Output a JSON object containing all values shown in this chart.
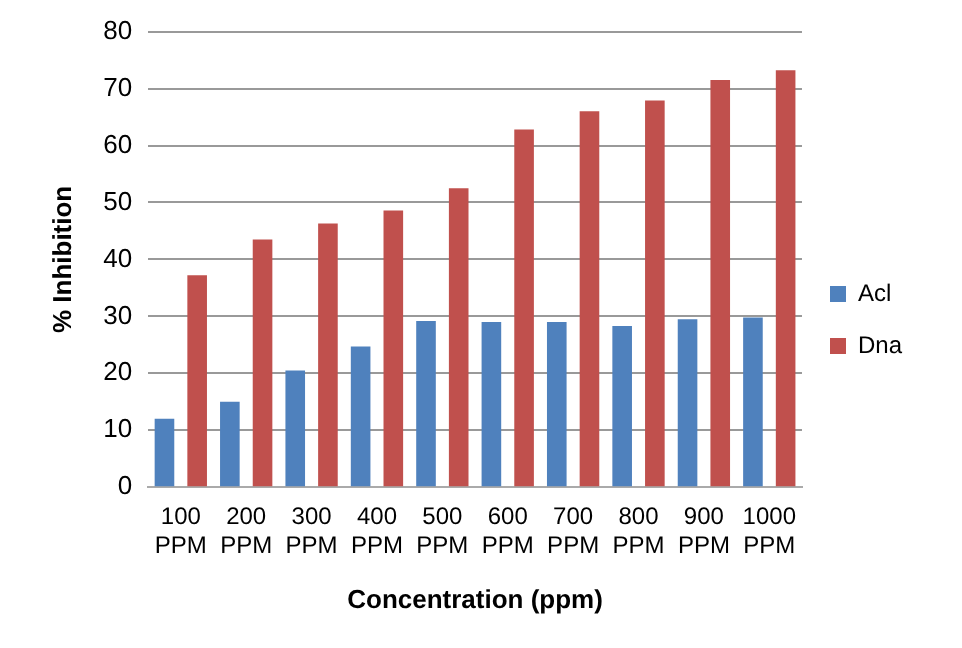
{
  "chart_data": {
    "type": "bar",
    "xlabel": "Concentration (ppm)",
    "ylabel": "% Inhibition",
    "categories": [
      "100 PPM",
      "200 PPM",
      "300 PPM",
      "400 PPM",
      "500 PPM",
      "600 PPM",
      "700 PPM",
      "800 PPM",
      "900 PPM",
      "1000 PPM"
    ],
    "series": [
      {
        "name": "Acl",
        "color": "#4f81bd",
        "values": [
          12,
          15,
          20.5,
          24.7,
          29.2,
          29,
          29,
          28.3,
          29.5,
          29.8
        ]
      },
      {
        "name": "Dna",
        "color": "#c0504d",
        "values": [
          37.2,
          43.5,
          46.3,
          48.6,
          52.5,
          62.8,
          66,
          67.9,
          71.5,
          73.2
        ]
      }
    ],
    "ylim": [
      0,
      80
    ],
    "yticks": [
      0,
      10,
      20,
      30,
      40,
      50,
      60,
      70,
      80
    ],
    "grid": "y",
    "legend": "right"
  }
}
